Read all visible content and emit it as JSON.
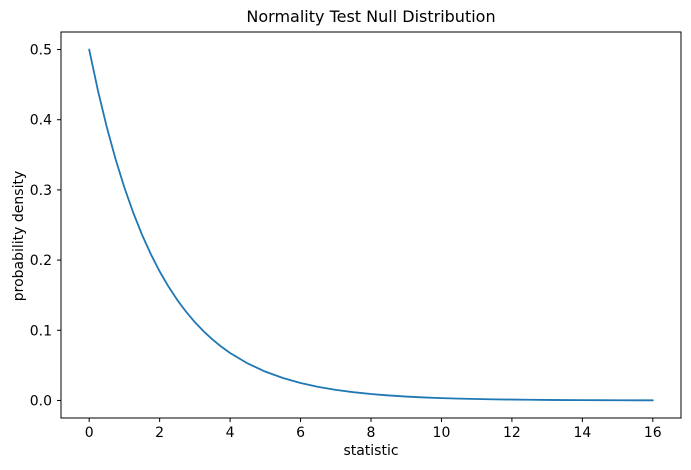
{
  "figure": {
    "background_color": "#ffffff"
  },
  "chart_data": {
    "type": "line",
    "title": "Normality Test Null Distribution",
    "xlabel": "statistic",
    "ylabel": "probability density",
    "line_color": "#1f77b4",
    "axis_color": "#000000",
    "grid": false,
    "legend_position": "none",
    "xlim": [
      -0.8,
      16.8
    ],
    "ylim": [
      -0.025,
      0.525
    ],
    "x_tick_labels": [
      "0",
      "2",
      "4",
      "6",
      "8",
      "10",
      "12",
      "14",
      "16"
    ],
    "y_tick_labels": [
      "0.0",
      "0.1",
      "0.2",
      "0.3",
      "0.4",
      "0.5"
    ],
    "x": [
      0,
      0.25,
      0.5,
      0.75,
      1,
      1.25,
      1.5,
      1.75,
      2,
      2.25,
      2.5,
      2.75,
      3,
      3.25,
      3.5,
      3.75,
      4,
      4.5,
      5,
      5.5,
      6,
      6.5,
      7,
      7.5,
      8,
      8.5,
      9,
      9.5,
      10,
      10.5,
      11,
      11.5,
      12,
      12.5,
      13,
      13.5,
      14,
      14.5,
      15,
      15.5,
      16
    ],
    "y": [
      0.5,
      0.44125,
      0.3894,
      0.34364,
      0.30327,
      0.26763,
      0.23618,
      0.20843,
      0.18394,
      0.16233,
      0.14325,
      0.12642,
      0.11157,
      0.09846,
      0.08689,
      0.07668,
      0.06767,
      0.0527,
      0.04104,
      0.03196,
      0.02489,
      0.01939,
      0.0151,
      0.01176,
      0.00916,
      0.00713,
      0.00555,
      0.00433,
      0.00337,
      0.00262,
      0.00204,
      0.00159,
      0.00124,
      0.00097,
      0.00075,
      0.00059,
      0.00046,
      0.00036,
      0.00028,
      0.00022,
      0.00017
    ]
  }
}
